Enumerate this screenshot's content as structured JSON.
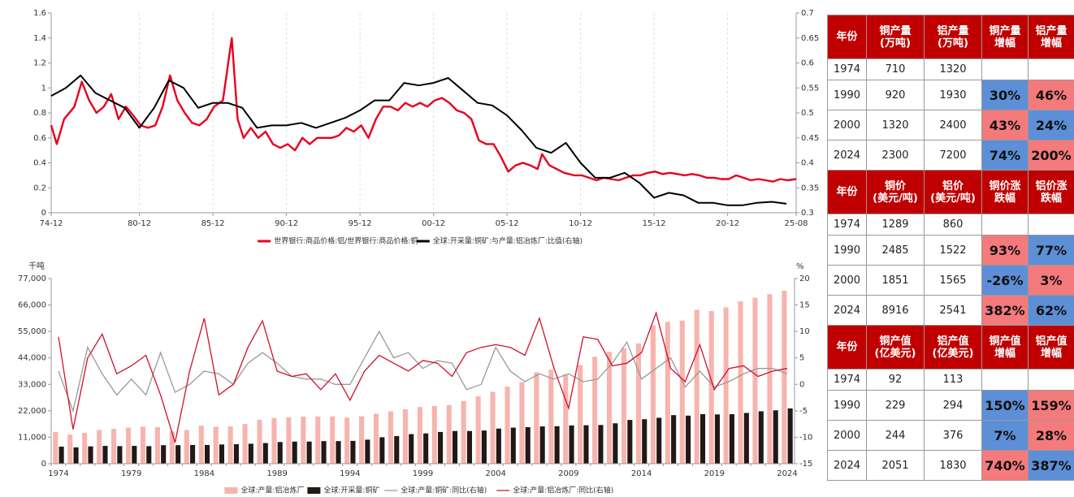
{
  "chart_data": [
    {
      "type": "line",
      "xlim": [
        1974.92,
        2025.58
      ],
      "xticks": [
        {
          "value": 1974.92,
          "label": "74-12"
        },
        {
          "value": 1980.92,
          "label": "80-12"
        },
        {
          "value": 1985.92,
          "label": "85-12"
        },
        {
          "value": 1990.92,
          "label": "90-12"
        },
        {
          "value": 1995.92,
          "label": "95-12"
        },
        {
          "value": 2000.92,
          "label": "00-12"
        },
        {
          "value": 2005.92,
          "label": "05-12"
        },
        {
          "value": 2010.92,
          "label": "10-12"
        },
        {
          "value": 2015.92,
          "label": "15-12"
        },
        {
          "value": 2020.92,
          "label": "20-12"
        },
        {
          "value": 2025.58,
          "label": "25-08"
        }
      ],
      "ylim": [
        0,
        1.6
      ],
      "yticks": [
        0,
        0.2,
        0.4,
        0.6,
        0.8,
        1,
        1.2,
        1.4,
        1.6
      ],
      "y2lim": [
        0.3,
        0.7
      ],
      "y2ticks": [
        0.3,
        0.35,
        0.4,
        0.45,
        0.5,
        0.55,
        0.6,
        0.65,
        0.7
      ],
      "grid": "x",
      "series": [
        {
          "name": "世界银行:商品价格:铝/世界银行:商品价格:铜",
          "color": "#e8001c",
          "x": [
            1974.92,
            1975.3,
            1975.8,
            1976.5,
            1977,
            1977.5,
            1978,
            1978.5,
            1979,
            1979.5,
            1980,
            1980.5,
            1981,
            1981.5,
            1982,
            1982.5,
            1983,
            1983.5,
            1984,
            1984.5,
            1985,
            1985.5,
            1986,
            1986.6,
            1987.2,
            1987.6,
            1988,
            1988.5,
            1989,
            1989.5,
            1990,
            1990.5,
            1991,
            1991.5,
            1992,
            1992.5,
            1993,
            1993.5,
            1994,
            1994.5,
            1995,
            1995.5,
            1996,
            1996.5,
            1997,
            1997.5,
            1998,
            1998.5,
            1999,
            1999.5,
            2000,
            2000.5,
            2001,
            2001.5,
            2002,
            2002.5,
            2003,
            2003.5,
            2004,
            2004.5,
            2005,
            2005.5,
            2006,
            2006.5,
            2007,
            2007.5,
            2008,
            2008.3,
            2008.8,
            2009.3,
            2009.8,
            2010.5,
            2011,
            2011.5,
            2012,
            2012.5,
            2013,
            2013.5,
            2014,
            2014.5,
            2015,
            2015.5,
            2016,
            2016.5,
            2017,
            2017.5,
            2018,
            2018.5,
            2019,
            2019.5,
            2020,
            2020.5,
            2021,
            2021.5,
            2022,
            2022.5,
            2023,
            2023.5,
            2024,
            2024.5,
            2025,
            2025.58
          ],
          "values": [
            0.7,
            0.55,
            0.75,
            0.85,
            1.05,
            0.9,
            0.8,
            0.85,
            0.95,
            0.75,
            0.85,
            0.78,
            0.7,
            0.68,
            0.7,
            0.85,
            1.1,
            0.9,
            0.8,
            0.72,
            0.7,
            0.75,
            0.85,
            0.9,
            1.4,
            0.75,
            0.6,
            0.68,
            0.6,
            0.65,
            0.55,
            0.52,
            0.55,
            0.5,
            0.6,
            0.55,
            0.6,
            0.6,
            0.6,
            0.62,
            0.68,
            0.65,
            0.7,
            0.6,
            0.75,
            0.85,
            0.85,
            0.82,
            0.88,
            0.85,
            0.88,
            0.85,
            0.9,
            0.92,
            0.88,
            0.82,
            0.8,
            0.75,
            0.58,
            0.55,
            0.55,
            0.45,
            0.33,
            0.38,
            0.4,
            0.38,
            0.35,
            0.47,
            0.38,
            0.35,
            0.32,
            0.3,
            0.3,
            0.28,
            0.26,
            0.28,
            0.27,
            0.26,
            0.28,
            0.3,
            0.3,
            0.32,
            0.33,
            0.31,
            0.32,
            0.31,
            0.3,
            0.31,
            0.3,
            0.28,
            0.28,
            0.27,
            0.27,
            0.3,
            0.28,
            0.26,
            0.27,
            0.26,
            0.25,
            0.27,
            0.26,
            0.27
          ]
        },
        {
          "name": "全球:开采量:铜矿:与产量:铝冶炼厂:比值(右轴)",
          "color": "#000000",
          "axis": "y2",
          "x": [
            1974.92,
            1975.92,
            1976.92,
            1977.92,
            1978.92,
            1979.92,
            1980.92,
            1981.92,
            1982.92,
            1983.92,
            1984.92,
            1985.92,
            1986.92,
            1987.92,
            1988.92,
            1989.92,
            1990.92,
            1991.92,
            1992.92,
            1993.92,
            1994.92,
            1995.92,
            1996.92,
            1997.92,
            1998.92,
            1999.92,
            2000.92,
            2001.92,
            2002.92,
            2003.92,
            2004.92,
            2005.92,
            2006.92,
            2007.92,
            2008.92,
            2009.92,
            2010.92,
            2011.92,
            2012.92,
            2013.92,
            2014.92,
            2015.92,
            2016.92,
            2017.92,
            2018.92,
            2019.92,
            2020.92,
            2021.92,
            2022.92,
            2023.92,
            2024.92
          ],
          "values": [
            0.534,
            0.55,
            0.575,
            0.54,
            0.525,
            0.51,
            0.47,
            0.51,
            0.565,
            0.55,
            0.51,
            0.52,
            0.52,
            0.51,
            0.47,
            0.475,
            0.475,
            0.48,
            0.47,
            0.48,
            0.49,
            0.505,
            0.525,
            0.525,
            0.56,
            0.555,
            0.56,
            0.57,
            0.545,
            0.52,
            0.515,
            0.495,
            0.465,
            0.43,
            0.42,
            0.44,
            0.4,
            0.37,
            0.37,
            0.38,
            0.36,
            0.33,
            0.34,
            0.335,
            0.32,
            0.32,
            0.315,
            0.315,
            0.32,
            0.322,
            0.318
          ]
        }
      ]
    },
    {
      "type": "bar",
      "ylabel": "千吨",
      "y2label": "%",
      "categories": [
        "1974",
        null,
        null,
        null,
        null,
        "1979",
        null,
        null,
        null,
        null,
        "1984",
        null,
        null,
        null,
        null,
        "1989",
        null,
        null,
        null,
        null,
        "1994",
        null,
        null,
        null,
        null,
        "1999",
        null,
        null,
        null,
        null,
        "2004",
        null,
        null,
        null,
        null,
        "2009",
        null,
        null,
        null,
        null,
        "2014",
        null,
        null,
        null,
        null,
        "2019",
        null,
        null,
        null,
        null,
        "2024"
      ],
      "ylim": [
        0,
        77000
      ],
      "yticks": [
        0,
        {
          "value": 11000,
          "label": "11,000"
        },
        {
          "value": 22000,
          "label": "22,000"
        },
        {
          "value": 33000,
          "label": "33,000"
        },
        {
          "value": 44000,
          "label": "44,000"
        },
        {
          "value": 55000,
          "label": "55,000"
        },
        {
          "value": 66000,
          "label": "66,000"
        },
        {
          "value": 77000,
          "label": "77,000"
        }
      ],
      "y2lim": [
        -15,
        20
      ],
      "y2ticks": [
        -15,
        -10,
        -5,
        0,
        5,
        10,
        15,
        20
      ],
      "series": [
        {
          "name": "全球:产量:铝冶炼厂",
          "type": "bar",
          "color": "#f7b4ae",
          "values": [
            13200,
            12100,
            12800,
            14000,
            14500,
            15000,
            15400,
            15200,
            13500,
            14000,
            15800,
            15400,
            15500,
            16500,
            18300,
            19000,
            19300,
            19600,
            19600,
            19700,
            19200,
            19700,
            20800,
            21800,
            22600,
            23600,
            24000,
            24400,
            26100,
            28000,
            29900,
            32000,
            33900,
            38000,
            39100,
            37200,
            41000,
            44500,
            46500,
            48000,
            50000,
            57500,
            59000,
            59500,
            64000,
            63500,
            65000,
            67500,
            69000,
            70500,
            72000
          ]
        },
        {
          "name": "全球:开采量:铜矿",
          "type": "bar",
          "color": "#231815",
          "values": [
            7100,
            6800,
            7200,
            7400,
            7300,
            7400,
            7300,
            7700,
            7700,
            7800,
            7800,
            8000,
            8100,
            8300,
            8600,
            9000,
            9200,
            9200,
            9400,
            9400,
            9500,
            10000,
            11000,
            11500,
            12300,
            12600,
            13200,
            13600,
            13600,
            13800,
            14600,
            15000,
            15200,
            15500,
            15600,
            15900,
            16000,
            16100,
            16800,
            18200,
            18500,
            19100,
            20200,
            20000,
            20600,
            20500,
            20600,
            21100,
            21800,
            22200,
            23000
          ]
        },
        {
          "name": "全球:产量:铜矿:同比(右轴)",
          "type": "line",
          "axis": "y2",
          "color": "#999999",
          "values": [
            2.5,
            -5,
            7,
            2,
            -2,
            1,
            -2,
            6,
            -1.5,
            0,
            2.5,
            2,
            0,
            4,
            6,
            4,
            1.5,
            1,
            1,
            0,
            0,
            5,
            10,
            5,
            6,
            3,
            4.5,
            4,
            -1,
            0,
            7,
            2.5,
            0.5,
            2,
            1,
            2,
            0.5,
            1,
            4,
            8,
            1,
            3,
            5,
            -0.5,
            2.5,
            -0.5,
            0.5,
            2,
            3,
            3,
            2
          ]
        },
        {
          "name": "全球:产量:铝冶炼厂:同比(右轴)",
          "type": "line",
          "axis": "y2",
          "color": "#d0102a",
          "values": [
            9,
            -8.5,
            5,
            9.5,
            2,
            3.5,
            5.5,
            -2,
            -11,
            2.5,
            12.5,
            -2,
            0,
            7,
            12,
            2.5,
            1.5,
            2,
            -1,
            2,
            -3,
            2.5,
            5.5,
            4,
            2.5,
            4.5,
            4,
            1.5,
            6,
            7,
            7.5,
            7,
            5.5,
            12.5,
            3,
            -4.5,
            9,
            8.5,
            3.5,
            4,
            6,
            13.5,
            3,
            0.5,
            7.5,
            -1,
            3,
            3.5,
            1.5,
            2.5,
            3
          ]
        }
      ]
    }
  ],
  "table": {
    "blocks": [
      {
        "header": [
          "年份",
          "铜产量\n(万吨)",
          "铝产量\n(万吨)",
          "铜产量\n增幅",
          "铝产量\n增幅"
        ],
        "rows": [
          [
            "1974",
            "710",
            "1320",
            "",
            ""
          ],
          [
            "1990",
            "920",
            "1930",
            "30%",
            "46%"
          ],
          [
            "2000",
            "1320",
            "2400",
            "43%",
            "24%"
          ],
          [
            "2024",
            "2300",
            "7200",
            "74%",
            "200%"
          ]
        ],
        "fills": [
          [
            null,
            null,
            null,
            null,
            null
          ],
          [
            null,
            null,
            null,
            "blue",
            "red"
          ],
          [
            null,
            null,
            null,
            "red",
            "blue"
          ],
          [
            null,
            null,
            null,
            "blue",
            "red"
          ]
        ]
      },
      {
        "header": [
          "年份",
          "铜价\n(美元/吨)",
          "铝价\n(美元/吨)",
          "铜价涨\n跌幅",
          "铝价涨\n跌幅"
        ],
        "rows": [
          [
            "1974",
            "1289",
            "860",
            "",
            ""
          ],
          [
            "1990",
            "2485",
            "1522",
            "93%",
            "77%"
          ],
          [
            "2000",
            "1851",
            "1565",
            "-26%",
            "3%"
          ],
          [
            "2024",
            "8916",
            "2541",
            "382%",
            "62%"
          ]
        ],
        "fills": [
          [
            null,
            null,
            null,
            null,
            null
          ],
          [
            null,
            null,
            null,
            "red",
            "blue"
          ],
          [
            null,
            null,
            null,
            "blue",
            "red"
          ],
          [
            null,
            null,
            null,
            "red",
            "blue"
          ]
        ]
      },
      {
        "header": [
          "年份",
          "铜产值\n(亿美元)",
          "铝产值\n(亿美元)",
          "铜产值\n增幅",
          "铝产值\n增幅"
        ],
        "rows": [
          [
            "1974",
            "92",
            "113",
            "",
            ""
          ],
          [
            "1990",
            "229",
            "294",
            "150%",
            "159%"
          ],
          [
            "2000",
            "244",
            "376",
            "7%",
            "28%"
          ],
          [
            "2024",
            "2051",
            "1830",
            "740%",
            "387%"
          ]
        ],
        "fills": [
          [
            null,
            null,
            null,
            null,
            null
          ],
          [
            null,
            null,
            null,
            "blue",
            "red"
          ],
          [
            null,
            null,
            null,
            "blue",
            "red"
          ],
          [
            null,
            null,
            null,
            "red",
            "blue"
          ]
        ]
      }
    ]
  }
}
